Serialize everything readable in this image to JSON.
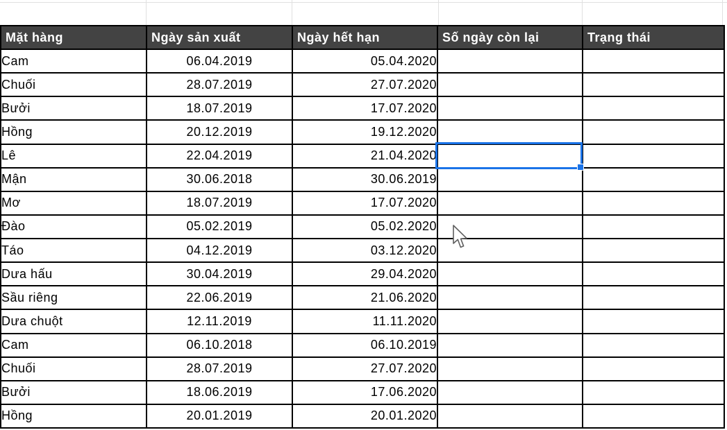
{
  "spreadsheet": {
    "columns": [
      "Mặt hàng",
      "Ngày sản xuất",
      "Ngày hết hạn",
      "Số ngày còn lại",
      "Trạng thái"
    ],
    "rows": [
      {
        "item": "Cam",
        "production_date": "06.04.2019",
        "expiry_date": "05.04.2020",
        "days_left": "",
        "status": ""
      },
      {
        "item": "Chuối",
        "production_date": "28.07.2019",
        "expiry_date": "27.07.2020",
        "days_left": "",
        "status": ""
      },
      {
        "item": "Bưởi",
        "production_date": "18.07.2019",
        "expiry_date": "17.07.2020",
        "days_left": "",
        "status": ""
      },
      {
        "item": "Hồng",
        "production_date": "20.12.2019",
        "expiry_date": "19.12.2020",
        "days_left": "",
        "status": ""
      },
      {
        "item": "Lê",
        "production_date": "22.04.2019",
        "expiry_date": "21.04.2020",
        "days_left": "",
        "status": ""
      },
      {
        "item": "Mận",
        "production_date": "30.06.2018",
        "expiry_date": "30.06.2019",
        "days_left": "",
        "status": ""
      },
      {
        "item": "Mơ",
        "production_date": "18.07.2019",
        "expiry_date": "17.07.2020",
        "days_left": "",
        "status": ""
      },
      {
        "item": "Đào",
        "production_date": "05.02.2019",
        "expiry_date": "05.02.2020",
        "days_left": "",
        "status": ""
      },
      {
        "item": "Táo",
        "production_date": "04.12.2019",
        "expiry_date": "03.12.2020",
        "days_left": "",
        "status": ""
      },
      {
        "item": "Dưa hấu",
        "production_date": "30.04.2019",
        "expiry_date": "29.04.2020",
        "days_left": "",
        "status": ""
      },
      {
        "item": "Sầu riêng",
        "production_date": "22.06.2019",
        "expiry_date": "21.06.2020",
        "days_left": "",
        "status": ""
      },
      {
        "item": "Dưa chuột",
        "production_date": "12.11.2019",
        "expiry_date": "11.11.2020",
        "days_left": "",
        "status": ""
      },
      {
        "item": "Cam",
        "production_date": "06.10.2018",
        "expiry_date": "06.10.2019",
        "days_left": "",
        "status": ""
      },
      {
        "item": "Chuối",
        "production_date": "28.07.2019",
        "expiry_date": "27.07.2020",
        "days_left": "",
        "status": ""
      },
      {
        "item": "Bưởi",
        "production_date": "18.06.2019",
        "expiry_date": "17.06.2020",
        "days_left": "",
        "status": ""
      },
      {
        "item": "Hồng",
        "production_date": "20.01.2019",
        "expiry_date": "20.01.2020",
        "days_left": "",
        "status": ""
      }
    ],
    "selection": {
      "row_item": "Lê",
      "column": "Số ngày còn lại",
      "value": ""
    }
  },
  "colors": {
    "header_background": "#434343",
    "header_text": "#ffffff",
    "table_border": "#000000",
    "selection_blue": "#1a73e8",
    "gridline": "#e0e0e0"
  }
}
